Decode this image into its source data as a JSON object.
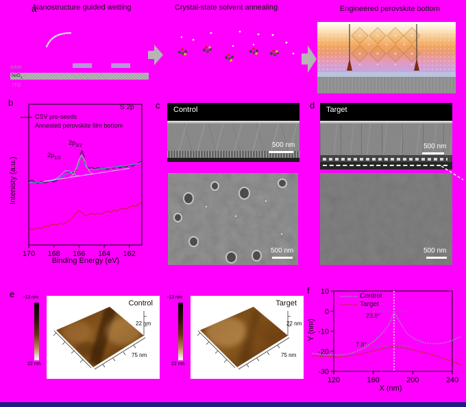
{
  "colors": {
    "background": "#ff00ff",
    "bottom_bar": "#1e1c85",
    "sam_patch": "#b795d8",
    "substrate_gray": "#a2a2a2",
    "arrow_gray": "#b5b5b5",
    "transport_layer_blue": "#b9c3dd",
    "electrode_gray": "#8e8e8e",
    "xps_data": "#1a1a1a",
    "xps_fit": "#2fa8a8",
    "xps_component1": "#6ec8d8",
    "xps_component2": "#ef8fc8",
    "xps_annealed": "#bb2a10",
    "profile_control": "#8a93a6",
    "profile_target": "#b03218"
  },
  "panel_a": {
    "label": "a",
    "step1_title": "Nanostructure guided wetting",
    "step2_title": "Crystal-state solvent annealing",
    "step3_title": "Engineered perovskite bottom",
    "layer_sam": "SAM",
    "layer_niox_base": "NiO",
    "layer_niox_sub": "x",
    "layer_ito": "ITO"
  },
  "panel_b": {
    "label": "b",
    "corner_tag": "S 2p",
    "legend_1": "CSV pre-seeds",
    "legend_2": "Annealed perovskite film bottom",
    "peak1_base": "2p",
    "peak1_sub": "1/2",
    "peak2_base": "2p",
    "peak2_sub": "3/2",
    "xlabel": "Binding Energy (eV)",
    "ylabel": "Intenisty (a.u.)"
  },
  "panel_c": {
    "label": "c",
    "image_tag": "Control",
    "scalebar_top": "500 nm",
    "scalebar_bottom": "500 nm"
  },
  "panel_d": {
    "label": "d",
    "image_tag": "Target",
    "scalebar_top": "500 nm",
    "scalebar_bottom": "500 nm"
  },
  "panel_e": {
    "label": "e",
    "afm_1": {
      "tag": "Control",
      "colorbar_top": "-13 nm",
      "colorbar_bottom": "22 nm",
      "z_axis_label": "22 nm",
      "x_axis_label": "75 nm"
    },
    "afm_2": {
      "tag": "Target",
      "colorbar_top": "-13 nm",
      "colorbar_bottom": "22 nm",
      "z_axis_label": "22 nm",
      "x_axis_label": "75 nm"
    }
  },
  "panel_f": {
    "label": "f",
    "legend_1": "Control",
    "legend_2": "Target",
    "angle_control": "23.8°",
    "angle_target": "7.8°",
    "xlabel": "X (nm)",
    "ylabel": "Y (nm)"
  },
  "chart_data": [
    {
      "id": "xps-s2p",
      "type": "line",
      "title": "S 2p",
      "xlabel": "Binding Energy (eV)",
      "ylabel": "Intenisty (a.u.)",
      "xlim": [
        170,
        161
      ],
      "ylim": [
        0,
        1
      ],
      "x_ticks": [
        170,
        168,
        166,
        164,
        162
      ],
      "peak_labels": [
        "2p1/2",
        "2p3/2"
      ],
      "legend": [
        "CSV pre-seeds",
        "Annealed perovskite film bottom"
      ],
      "series": [
        {
          "name": "CSV pre-seeds",
          "color": "#1a1a1a",
          "width": 1,
          "x": [
            170,
            169.75,
            169.5,
            169.25,
            169,
            168.75,
            168.5,
            168.25,
            168,
            167.75,
            167.5,
            167.25,
            167,
            166.75,
            166.5,
            166.25,
            166,
            165.85,
            165.75,
            165.6,
            165.5,
            165.25,
            165,
            164.75,
            164.5,
            164.25,
            164,
            163.75,
            163.5,
            163.25,
            163,
            162.75,
            162.5,
            162.25,
            162,
            161.75,
            161.5,
            161.25,
            161
          ],
          "y": [
            0.45,
            0.462,
            0.445,
            0.44,
            0.455,
            0.442,
            0.448,
            0.456,
            0.448,
            0.462,
            0.478,
            0.492,
            0.51,
            0.52,
            0.512,
            0.53,
            0.585,
            0.655,
            0.67,
            0.625,
            0.58,
            0.545,
            0.552,
            0.54,
            0.552,
            0.54,
            0.548,
            0.538,
            0.552,
            0.545,
            0.558,
            0.548,
            0.56,
            0.555,
            0.568,
            0.56,
            0.575,
            0.585,
            0.595
          ]
        },
        {
          "name": "fit envelope",
          "color": "#2fa8a8",
          "width": 1.3,
          "x": [
            170,
            169,
            168.5,
            168,
            167.6,
            167.3,
            167,
            166.7,
            166.4,
            166.15,
            166,
            165.85,
            165.7,
            165.55,
            165.4,
            165.2,
            165,
            164.5,
            164,
            163.5,
            163,
            162.5,
            162,
            161.5,
            161
          ],
          "y": [
            0.443,
            0.447,
            0.452,
            0.46,
            0.472,
            0.49,
            0.508,
            0.515,
            0.522,
            0.545,
            0.585,
            0.64,
            0.622,
            0.575,
            0.55,
            0.538,
            0.535,
            0.54,
            0.545,
            0.55,
            0.556,
            0.562,
            0.568,
            0.576,
            0.585
          ]
        },
        {
          "name": "2p1/2 component",
          "color": "#6ec8d8",
          "width": 1,
          "x": [
            168.6,
            168.3,
            168,
            167.7,
            167.4,
            167.1,
            166.8,
            166.5,
            166.2,
            165.9,
            165.6,
            165.3,
            165
          ],
          "y": [
            0.455,
            0.459,
            0.465,
            0.478,
            0.503,
            0.528,
            0.527,
            0.507,
            0.494,
            0.493,
            0.496,
            0.5,
            0.504
          ]
        },
        {
          "name": "2p3/2 component",
          "color": "#ef8fc8",
          "width": 1,
          "x": [
            166.8,
            166.6,
            166.4,
            166.2,
            166,
            165.8,
            165.6,
            165.4,
            165.2,
            165,
            164.8,
            164.6
          ],
          "y": [
            0.48,
            0.488,
            0.509,
            0.553,
            0.609,
            0.638,
            0.615,
            0.564,
            0.526,
            0.51,
            0.508,
            0.509
          ]
        },
        {
          "name": "baseline",
          "color": "#d0d0e8",
          "width": 1,
          "x": [
            168.8,
            162.0
          ],
          "y": [
            0.452,
            0.545
          ]
        },
        {
          "name": "Annealed perovskite film bottom",
          "color": "#bb2a10",
          "width": 1,
          "x": [
            170,
            169.75,
            169.5,
            169.25,
            169,
            168.75,
            168.5,
            168.25,
            168,
            167.75,
            167.5,
            167.25,
            167,
            166.75,
            166.5,
            166.25,
            166,
            165.75,
            165.5,
            165.25,
            165,
            164.75,
            164.5,
            164.25,
            164,
            163.75,
            163.5,
            163.25,
            163,
            162.75,
            162.5,
            162.25,
            162,
            161.75,
            161.5,
            161.25,
            161
          ],
          "y": [
            0.1,
            0.118,
            0.108,
            0.125,
            0.115,
            0.132,
            0.128,
            0.142,
            0.15,
            0.14,
            0.155,
            0.148,
            0.162,
            0.175,
            0.195,
            0.225,
            0.245,
            0.23,
            0.205,
            0.215,
            0.228,
            0.215,
            0.225,
            0.218,
            0.232,
            0.242,
            0.23,
            0.248,
            0.24,
            0.255,
            0.262,
            0.252,
            0.268,
            0.28,
            0.272,
            0.292,
            0.31
          ]
        }
      ]
    },
    {
      "id": "line-profile",
      "type": "line",
      "xlabel": "X (nm)",
      "ylabel": "Y (nm)",
      "xlim": [
        120,
        240
      ],
      "ylim": [
        -30,
        10
      ],
      "x_ticks": [
        120,
        160,
        200,
        240
      ],
      "y_ticks": [
        10,
        0,
        -10,
        -20,
        -30
      ],
      "legend": [
        "Control",
        "Target"
      ],
      "annotations": [
        "23.8°",
        "7.8°"
      ],
      "vline_x": 181,
      "hlines": [
        {
          "y": 0,
          "x1": 160,
          "x2": 197
        },
        {
          "y": -17.5,
          "x1": 143,
          "x2": 197
        }
      ],
      "series": [
        {
          "name": "Control",
          "color": "#8a93a6",
          "width": 1.6,
          "dash": "2 1.7",
          "x": [
            98,
            104,
            110,
            116,
            122,
            127,
            131,
            136,
            141,
            146,
            151,
            156,
            161,
            166,
            171,
            176,
            179,
            181,
            183,
            186,
            189,
            192,
            196,
            200,
            204,
            208,
            212,
            216,
            220,
            224,
            228,
            232,
            236,
            240,
            244,
            248
          ],
          "y": [
            -21.2,
            -21.4,
            -21.6,
            -21.8,
            -21.9,
            -22.0,
            -21.7,
            -21.2,
            -20.4,
            -19.4,
            -18.2,
            -16.6,
            -14.8,
            -12.6,
            -10.0,
            -6.6,
            -3.2,
            -0.3,
            -2.0,
            -4.6,
            -7.2,
            -9.6,
            -12.0,
            -13.3,
            -14.3,
            -15.2,
            -15.8,
            -16.1,
            -16.2,
            -16.2,
            -16.1,
            -15.8,
            -15.3,
            -14.6,
            -13.7,
            -12.8
          ]
        },
        {
          "name": "Target",
          "color": "#b03218",
          "width": 1.6,
          "dash": "2 1.7",
          "x": [
            98,
            105,
            112,
            119,
            126,
            133,
            140,
            147,
            154,
            161,
            168,
            174,
            178,
            182,
            186,
            191,
            197,
            203,
            210,
            217,
            224,
            231,
            238,
            244,
            250
          ],
          "y": [
            -22.4,
            -22.5,
            -22.6,
            -22.6,
            -22.7,
            -22.4,
            -21.9,
            -21.3,
            -20.6,
            -19.8,
            -19.0,
            -18.3,
            -17.8,
            -17.6,
            -17.8,
            -18.3,
            -19.0,
            -19.7,
            -20.5,
            -21.4,
            -22.4,
            -23.5,
            -24.8,
            -25.9,
            -27.0
          ]
        }
      ]
    }
  ]
}
